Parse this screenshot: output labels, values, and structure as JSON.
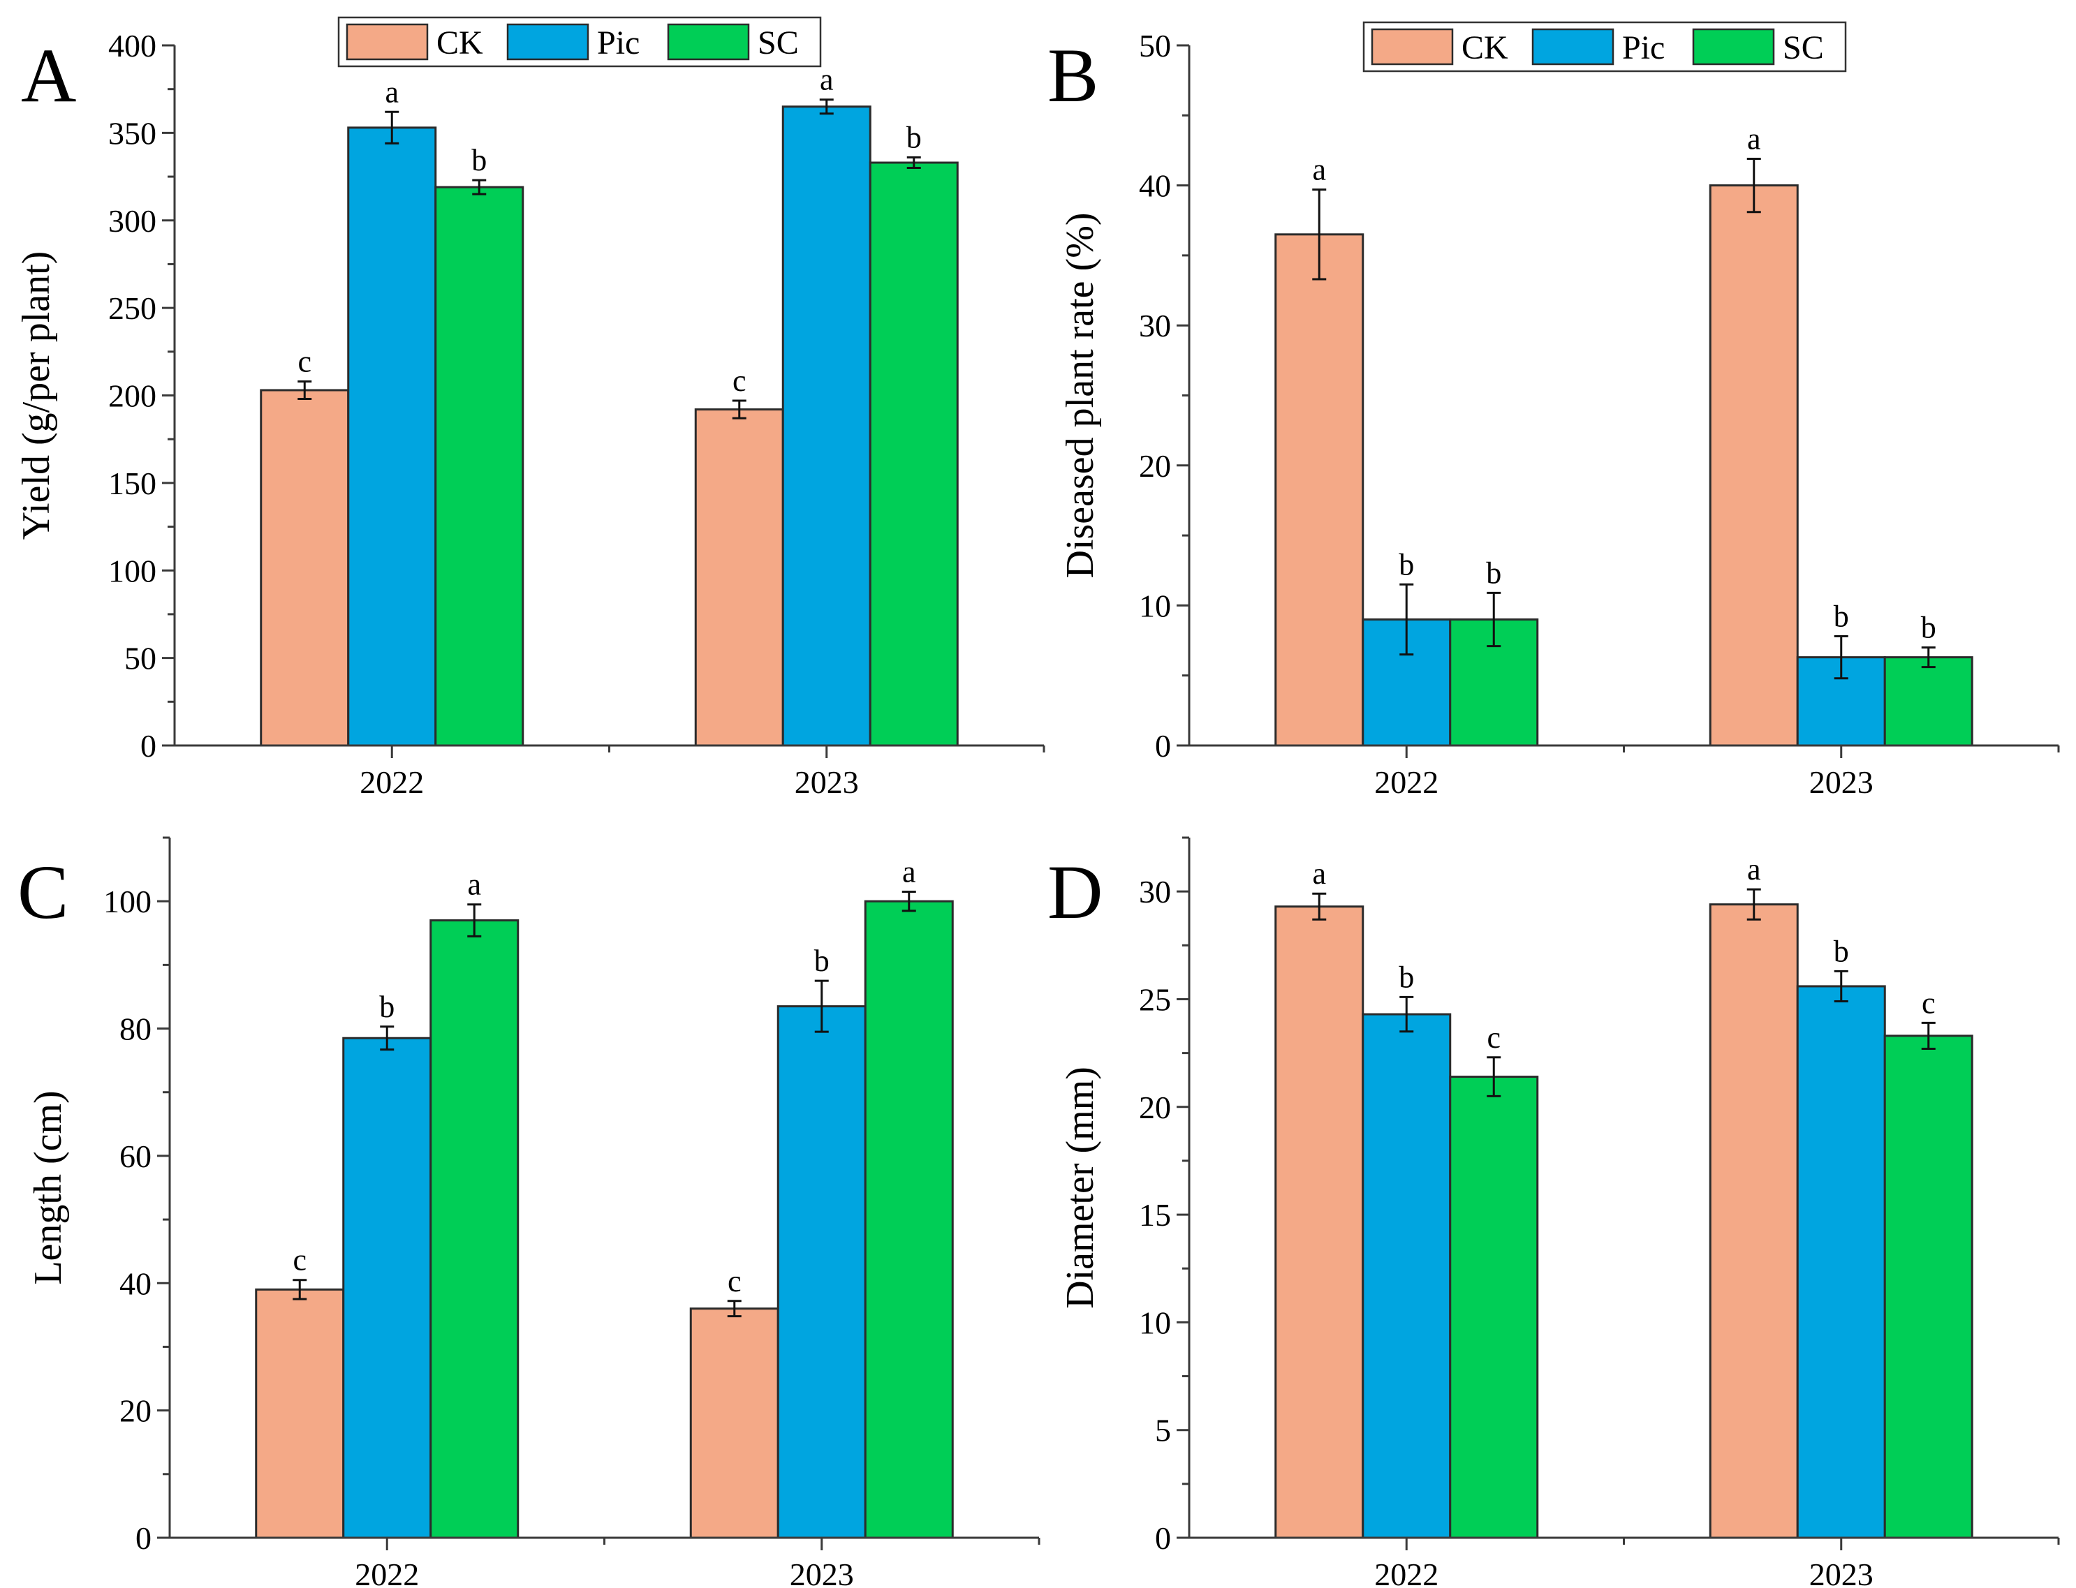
{
  "colors": {
    "CK": "#f4a987",
    "Pic": "#00a5e0",
    "SC": "#00ce56",
    "axis": "#3a3a3a",
    "bar_stroke": "#2b2b2b"
  },
  "chart_data": [
    {
      "panel": "A",
      "type": "bar",
      "categories": [
        "2022",
        "2023"
      ],
      "ylabel": "Yield (g/per plant)",
      "ylim": [
        0,
        400
      ],
      "yticks": [
        "0",
        "50",
        "100",
        "150",
        "200",
        "250",
        "300",
        "350",
        "400"
      ],
      "legend": [
        "CK",
        "Pic",
        "SC"
      ],
      "legend_position": "top",
      "series": [
        {
          "name": "CK",
          "values": [
            203,
            192
          ],
          "errors": [
            5,
            5
          ],
          "letters": [
            "c",
            "c"
          ]
        },
        {
          "name": "Pic",
          "values": [
            353,
            365
          ],
          "errors": [
            9,
            4
          ],
          "letters": [
            "a",
            "a"
          ]
        },
        {
          "name": "SC",
          "values": [
            319,
            333
          ],
          "errors": [
            4,
            3
          ],
          "letters": [
            "b",
            "b"
          ]
        }
      ]
    },
    {
      "panel": "B",
      "type": "bar",
      "categories": [
        "2022",
        "2023"
      ],
      "ylabel": "Diseased plant rate (%)",
      "ylim": [
        0,
        50
      ],
      "yticks": [
        "0",
        "10",
        "20",
        "30",
        "40",
        "50"
      ],
      "legend": [
        "CK",
        "Pic",
        "SC"
      ],
      "legend_position": "top",
      "series": [
        {
          "name": "CK",
          "values": [
            36.5,
            40
          ],
          "errors": [
            3.2,
            1.9
          ],
          "letters": [
            "a",
            "a"
          ]
        },
        {
          "name": "Pic",
          "values": [
            9,
            6.3
          ],
          "errors": [
            2.5,
            1.5
          ],
          "letters": [
            "b",
            "b"
          ]
        },
        {
          "name": "SC",
          "values": [
            9,
            6.3
          ],
          "errors": [
            1.9,
            0.7
          ],
          "letters": [
            "b",
            "b"
          ]
        }
      ]
    },
    {
      "panel": "C",
      "type": "bar",
      "categories": [
        "2022",
        "2023"
      ],
      "ylabel": "Length (cm)",
      "ylim": [
        0,
        110
      ],
      "yticks": [
        "0",
        "20",
        "40",
        "60",
        "80",
        "100"
      ],
      "series": [
        {
          "name": "CK",
          "values": [
            39,
            36
          ],
          "errors": [
            1.5,
            1.2
          ],
          "letters": [
            "c",
            "c"
          ]
        },
        {
          "name": "Pic",
          "values": [
            78.5,
            83.5
          ],
          "errors": [
            1.8,
            4
          ],
          "letters": [
            "b",
            "b"
          ]
        },
        {
          "name": "SC",
          "values": [
            97,
            100
          ],
          "errors": [
            2.5,
            1.5
          ],
          "letters": [
            "a",
            "a"
          ]
        }
      ]
    },
    {
      "panel": "D",
      "type": "bar",
      "categories": [
        "2022",
        "2023"
      ],
      "ylabel": "Diameter (mm)",
      "ylim": [
        0,
        32.5
      ],
      "yticks": [
        "0",
        "5",
        "10",
        "15",
        "20",
        "25",
        "30"
      ],
      "series": [
        {
          "name": "CK",
          "values": [
            29.3,
            29.4
          ],
          "errors": [
            0.6,
            0.7
          ],
          "letters": [
            "a",
            "a"
          ]
        },
        {
          "name": "Pic",
          "values": [
            24.3,
            25.6
          ],
          "errors": [
            0.8,
            0.7
          ],
          "letters": [
            "b",
            "b"
          ]
        },
        {
          "name": "SC",
          "values": [
            21.4,
            23.3
          ],
          "errors": [
            0.9,
            0.6
          ],
          "letters": [
            "c",
            "c"
          ]
        }
      ]
    }
  ]
}
